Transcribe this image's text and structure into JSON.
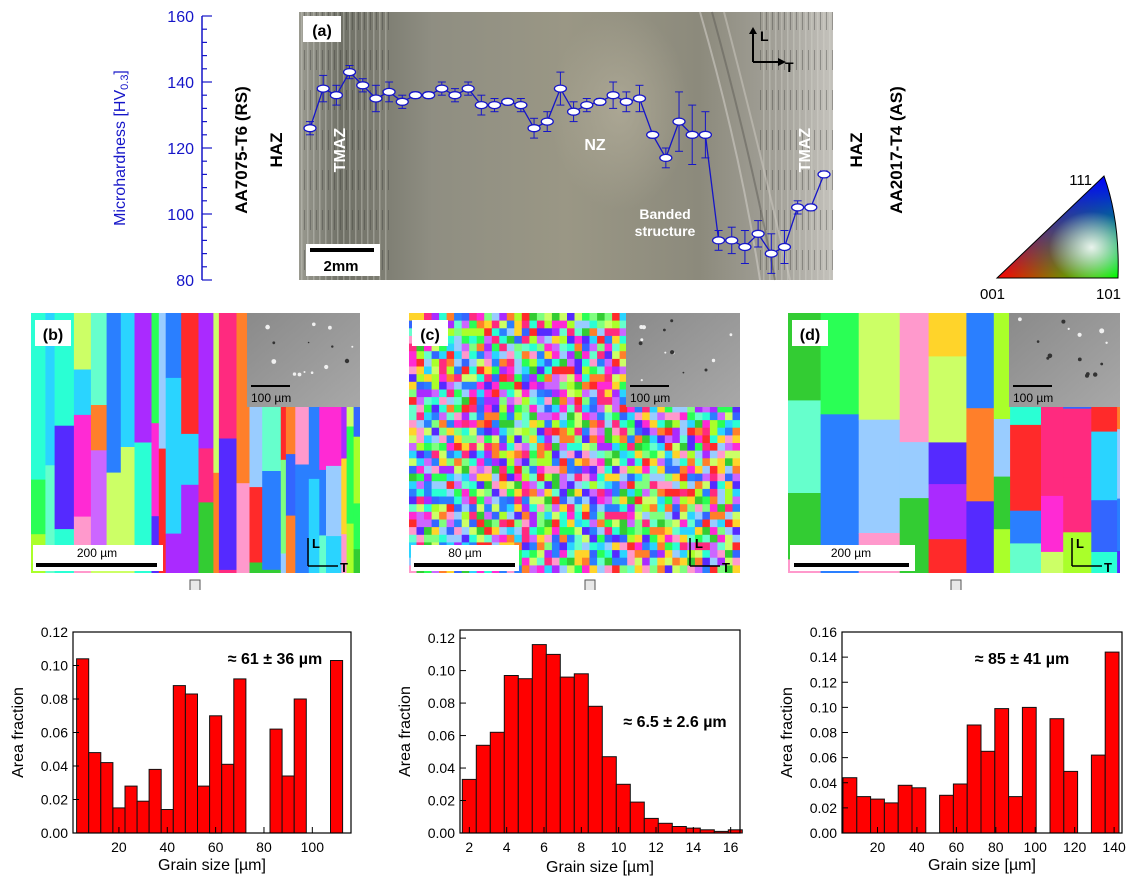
{
  "panel_a": {
    "label": "(a)",
    "ylabel": "Microhardness [HV",
    "ylabel_sub": "0.3",
    "ylabel_end": "]",
    "yticks": [
      "80",
      "100",
      "120",
      "140",
      "160"
    ],
    "left_material": "AA7075-T6 (RS)",
    "right_material": "AA2017-T4 (AS)",
    "haz_left": "HAZ",
    "haz_right": "HAZ",
    "tmaz_left": "TMAZ",
    "tmaz_right": "TMAZ",
    "nz": "NZ",
    "banded_line1": "Banded",
    "banded_line2": "structure",
    "scale": "2mm",
    "axis_L": "L",
    "axis_T": "T",
    "hardness": [
      126,
      138,
      136,
      143,
      139,
      135,
      137,
      134,
      136,
      136,
      138,
      136,
      138,
      133,
      133,
      134,
      133,
      126,
      128,
      138,
      131,
      133,
      134,
      136,
      134,
      135,
      124,
      117,
      128,
      124,
      124,
      92,
      92,
      90,
      94,
      88,
      90,
      102,
      102,
      112
    ],
    "errors": [
      2,
      4,
      3,
      2,
      2,
      4,
      3,
      2,
      1,
      1,
      2,
      2,
      2,
      3,
      2,
      1,
      2,
      3,
      3,
      5,
      3,
      2,
      1,
      4,
      3,
      4,
      1,
      3,
      9,
      9,
      7,
      3,
      4,
      5,
      4,
      6,
      5,
      2,
      1,
      1
    ]
  },
  "ipf_legend": {
    "top": "111",
    "left": "001",
    "right": "101"
  },
  "panels": [
    {
      "label": "(b)",
      "scale_ebsd": "200 µm",
      "scale_sem": "100 µm",
      "L": "L",
      "T": "T"
    },
    {
      "label": "(c)",
      "scale_ebsd": "80 µm",
      "scale_sem": "100 µm",
      "L": "L",
      "T": "T"
    },
    {
      "label": "(d)",
      "scale_ebsd": "200 µm",
      "scale_sem": "100 µm",
      "L": "L",
      "T": "T"
    }
  ],
  "chart_data": [
    {
      "type": "bar",
      "xlabel": "Grain size [µm]",
      "ylabel": "Area fraction",
      "annotation": "≈ 61 ± 36 µm",
      "xlim": [
        1,
        116
      ],
      "ylim": [
        0,
        0.12
      ],
      "xticks": [
        "20",
        "40",
        "60",
        "80",
        "100"
      ],
      "yticks": [
        "0.00",
        "0.02",
        "0.04",
        "0.06",
        "0.08",
        "0.10",
        "0.12"
      ],
      "x": [
        5,
        10,
        15,
        20,
        25,
        30,
        35,
        40,
        45,
        50,
        55,
        60,
        65,
        70,
        75,
        80,
        85,
        90,
        95,
        100,
        105,
        110,
        115
      ],
      "values": [
        0.104,
        0.048,
        0.042,
        0.015,
        0.028,
        0.019,
        0.038,
        0.014,
        0.088,
        0.083,
        0.028,
        0.07,
        0.041,
        0.092,
        0.0,
        0.0,
        0.062,
        0.034,
        0.08,
        0.0,
        0.0,
        0.103,
        0.0
      ]
    },
    {
      "type": "bar",
      "xlabel": "Grain size [µm]",
      "ylabel": "Area fraction",
      "annotation": "≈ 6.5 ± 2.6 µm",
      "xlim": [
        1.5,
        16.5
      ],
      "ylim": [
        0,
        0.125
      ],
      "xticks": [
        "2",
        "4",
        "6",
        "8",
        "10",
        "12",
        "14",
        "16"
      ],
      "yticks": [
        "0.00",
        "0.02",
        "0.04",
        "0.06",
        "0.08",
        "0.10",
        "0.12"
      ],
      "x": [
        2,
        2.75,
        3.5,
        4.25,
        5,
        5.75,
        6.5,
        7.25,
        8,
        8.75,
        9.5,
        10.25,
        11,
        11.75,
        12.5,
        13.25,
        14,
        14.75,
        15.5,
        16.25
      ],
      "values": [
        0.033,
        0.054,
        0.062,
        0.097,
        0.095,
        0.116,
        0.11,
        0.096,
        0.098,
        0.078,
        0.047,
        0.03,
        0.019,
        0.009,
        0.006,
        0.004,
        0.003,
        0.002,
        0.001,
        0.002
      ]
    },
    {
      "type": "bar",
      "xlabel": "Grain size [µm]",
      "ylabel": "Area fraction",
      "annotation": "≈ 85 ± 41 µm",
      "xlim": [
        2,
        144
      ],
      "ylim": [
        0,
        0.16
      ],
      "xticks": [
        "20",
        "40",
        "60",
        "80",
        "100",
        "120",
        "140"
      ],
      "yticks": [
        "0.00",
        "0.02",
        "0.04",
        "0.06",
        "0.08",
        "0.10",
        "0.12",
        "0.14",
        "0.16"
      ],
      "x": [
        6,
        13,
        20,
        27,
        34,
        41,
        48,
        55,
        62,
        69,
        76,
        83,
        90,
        97,
        104,
        111,
        118,
        125,
        132,
        139
      ],
      "values": [
        0.044,
        0.029,
        0.027,
        0.024,
        0.038,
        0.036,
        0.0,
        0.03,
        0.039,
        0.086,
        0.065,
        0.099,
        0.029,
        0.1,
        0.0,
        0.091,
        0.049,
        0.0,
        0.062,
        0.144
      ]
    }
  ]
}
